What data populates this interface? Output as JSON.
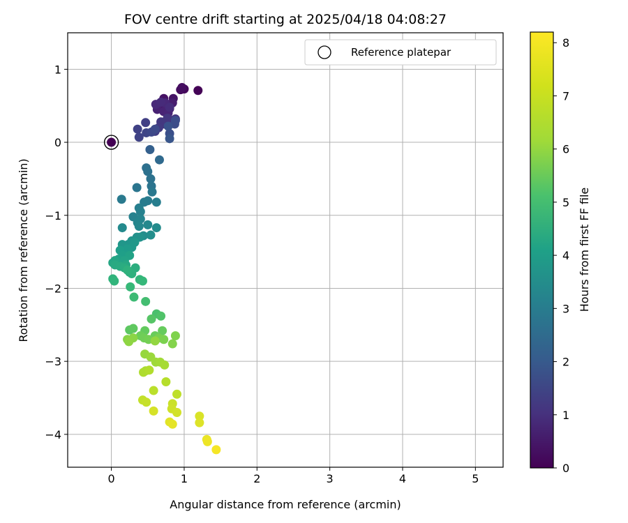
{
  "chart_data": {
    "type": "scatter",
    "title": "FOV centre drift starting at 2025/04/18 04:08:27",
    "xlabel": "Angular distance from reference (arcmin)",
    "ylabel": "Rotation from reference (arcmin)",
    "xlim": [
      -0.6,
      5.38
    ],
    "ylim": [
      -4.45,
      1.5
    ],
    "xticks": [
      0,
      1,
      2,
      3,
      4,
      5
    ],
    "yticks": [
      -4,
      -3,
      -2,
      -1,
      0,
      1
    ],
    "grid": true,
    "legend": {
      "placement": "top-right",
      "entries": [
        "Reference platepar"
      ]
    },
    "reference_point": {
      "x": 0,
      "y": 0
    },
    "colorbar": {
      "label": "Hours from first FF file",
      "colormap": "viridis",
      "range": [
        0,
        8.2
      ],
      "ticks": [
        0,
        1,
        2,
        3,
        4,
        5,
        6,
        7,
        8
      ]
    },
    "points": [
      [
        0,
        0,
        0
      ],
      [
        1.19,
        0.71,
        0.05
      ],
      [
        1.0,
        0.73,
        0.15
      ],
      [
        0.95,
        0.72,
        0.25
      ],
      [
        0.97,
        0.75,
        0.3
      ],
      [
        0.72,
        0.6,
        0.4
      ],
      [
        0.85,
        0.6,
        0.45
      ],
      [
        0.66,
        0.52,
        0.5
      ],
      [
        0.7,
        0.48,
        0.55
      ],
      [
        0.75,
        0.5,
        0.6
      ],
      [
        0.84,
        0.54,
        0.65
      ],
      [
        0.8,
        0.46,
        0.7
      ],
      [
        0.63,
        0.45,
        0.75
      ],
      [
        0.72,
        0.42,
        0.8
      ],
      [
        0.78,
        0.4,
        0.85
      ],
      [
        0.74,
        0.54,
        0.9
      ],
      [
        0.61,
        0.52,
        0.95
      ],
      [
        0.68,
        0.55,
        1.0
      ],
      [
        0.8,
        0.48,
        1.05
      ],
      [
        0.73,
        0.25,
        1.1
      ],
      [
        0.82,
        0.3,
        1.2
      ],
      [
        0.88,
        0.32,
        1.25
      ],
      [
        0.77,
        0.33,
        1.3
      ],
      [
        0.68,
        0.28,
        1.35
      ],
      [
        0.65,
        0.2,
        1.4
      ],
      [
        0.6,
        0.15,
        1.5
      ],
      [
        0.47,
        0.27,
        1.55
      ],
      [
        0.36,
        0.18,
        1.6
      ],
      [
        0.38,
        0.07,
        1.65
      ],
      [
        0.48,
        0.13,
        1.7
      ],
      [
        0.55,
        0.14,
        1.8
      ],
      [
        0.6,
        0.18,
        1.85
      ],
      [
        0.87,
        0.25,
        1.9
      ],
      [
        0.88,
        0.3,
        1.95
      ],
      [
        0.8,
        0.12,
        2.0
      ],
      [
        0.78,
        0.22,
        2.1
      ],
      [
        0.8,
        0.05,
        2.2
      ],
      [
        0.53,
        -0.1,
        2.5
      ],
      [
        0.66,
        -0.24,
        2.8
      ],
      [
        0.48,
        -0.35,
        3.0
      ],
      [
        0.5,
        -0.4,
        3.05
      ],
      [
        0.54,
        -0.5,
        3.1
      ],
      [
        0.55,
        -0.6,
        3.15
      ],
      [
        0.35,
        -0.62,
        3.2
      ],
      [
        0.56,
        -0.68,
        3.3
      ],
      [
        0.14,
        -0.78,
        3.35
      ],
      [
        0.5,
        -0.8,
        3.4
      ],
      [
        0.45,
        -0.82,
        3.45
      ],
      [
        0.62,
        -0.82,
        3.5
      ],
      [
        0.38,
        -0.9,
        3.55
      ],
      [
        0.4,
        -0.95,
        3.6
      ],
      [
        0.3,
        -1.02,
        3.65
      ],
      [
        0.4,
        -1.05,
        3.7
      ],
      [
        0.36,
        -1.1,
        3.75
      ],
      [
        0.38,
        -1.15,
        3.8
      ],
      [
        0.5,
        -1.13,
        3.85
      ],
      [
        0.15,
        -1.17,
        3.9
      ],
      [
        0.62,
        -1.17,
        3.95
      ],
      [
        0.44,
        -1.28,
        4.0
      ],
      [
        0.54,
        -1.27,
        4.05
      ],
      [
        0.35,
        -1.3,
        4.1
      ],
      [
        0.39,
        -1.3,
        4.15
      ],
      [
        0.28,
        -1.35,
        4.2
      ],
      [
        0.23,
        -1.4,
        4.25
      ],
      [
        0.15,
        -1.4,
        4.3
      ],
      [
        0.32,
        -1.37,
        4.35
      ],
      [
        0.28,
        -1.44,
        4.4
      ],
      [
        0.22,
        -1.46,
        4.45
      ],
      [
        0.2,
        -1.52,
        4.5
      ],
      [
        0.12,
        -1.48,
        4.55
      ],
      [
        0.16,
        -1.55,
        4.6
      ],
      [
        0.1,
        -1.6,
        4.65
      ],
      [
        0.25,
        -1.55,
        4.7
      ],
      [
        0.18,
        -1.62,
        4.75
      ],
      [
        0.05,
        -1.62,
        4.8
      ],
      [
        0.02,
        -1.65,
        4.85
      ],
      [
        0.2,
        -1.68,
        4.9
      ],
      [
        0.05,
        -1.68,
        4.95
      ],
      [
        0.12,
        -1.7,
        5.0
      ],
      [
        0.18,
        -1.72,
        5.05
      ],
      [
        0.33,
        -1.72,
        5.1
      ],
      [
        0.25,
        -1.78,
        5.15
      ],
      [
        0.28,
        -1.8,
        5.2
      ],
      [
        0.22,
        -1.75,
        5.25
      ],
      [
        0.02,
        -1.87,
        5.3
      ],
      [
        0.04,
        -1.9,
        5.35
      ],
      [
        0.39,
        -1.88,
        5.4
      ],
      [
        0.43,
        -1.9,
        5.45
      ],
      [
        0.26,
        -1.98,
        5.5
      ],
      [
        0.31,
        -2.12,
        5.6
      ],
      [
        0.47,
        -2.18,
        5.7
      ],
      [
        0.62,
        -2.35,
        5.8
      ],
      [
        0.68,
        -2.38,
        5.9
      ],
      [
        0.55,
        -2.42,
        6.0
      ],
      [
        0.25,
        -2.57,
        6.1
      ],
      [
        0.3,
        -2.55,
        6.15
      ],
      [
        0.46,
        -2.58,
        6.2
      ],
      [
        0.7,
        -2.58,
        6.25
      ],
      [
        0.6,
        -2.65,
        6.3
      ],
      [
        0.4,
        -2.65,
        6.35
      ],
      [
        0.45,
        -2.68,
        6.4
      ],
      [
        0.51,
        -2.7,
        6.45
      ],
      [
        0.65,
        -2.68,
        6.5
      ],
      [
        0.72,
        -2.7,
        6.55
      ],
      [
        0.88,
        -2.65,
        6.6
      ],
      [
        0.84,
        -2.76,
        6.65
      ],
      [
        0.22,
        -2.7,
        6.7
      ],
      [
        0.3,
        -2.68,
        6.75
      ],
      [
        0.24,
        -2.73,
        6.8
      ],
      [
        0.6,
        -2.72,
        6.85
      ],
      [
        0.46,
        -2.9,
        6.9
      ],
      [
        0.54,
        -2.94,
        6.95
      ],
      [
        0.61,
        -3.01,
        7.0
      ],
      [
        0.67,
        -3.01,
        7.05
      ],
      [
        0.73,
        -3.05,
        7.1
      ],
      [
        0.47,
        -3.13,
        7.15
      ],
      [
        0.44,
        -3.15,
        7.2
      ],
      [
        0.52,
        -3.12,
        7.25
      ],
      [
        0.75,
        -3.28,
        7.3
      ],
      [
        0.58,
        -3.4,
        7.35
      ],
      [
        0.9,
        -3.45,
        7.4
      ],
      [
        0.43,
        -3.53,
        7.45
      ],
      [
        0.48,
        -3.56,
        7.5
      ],
      [
        0.84,
        -3.58,
        7.55
      ],
      [
        0.83,
        -3.65,
        7.6
      ],
      [
        0.9,
        -3.7,
        7.65
      ],
      [
        0.58,
        -3.68,
        7.7
      ],
      [
        1.21,
        -3.75,
        7.75
      ],
      [
        1.21,
        -3.84,
        7.8
      ],
      [
        0.8,
        -3.83,
        7.85
      ],
      [
        0.84,
        -3.86,
        7.9
      ],
      [
        1.31,
        -4.07,
        7.95
      ],
      [
        1.32,
        -4.1,
        8.0
      ],
      [
        1.44,
        -4.21,
        8.1
      ]
    ]
  }
}
